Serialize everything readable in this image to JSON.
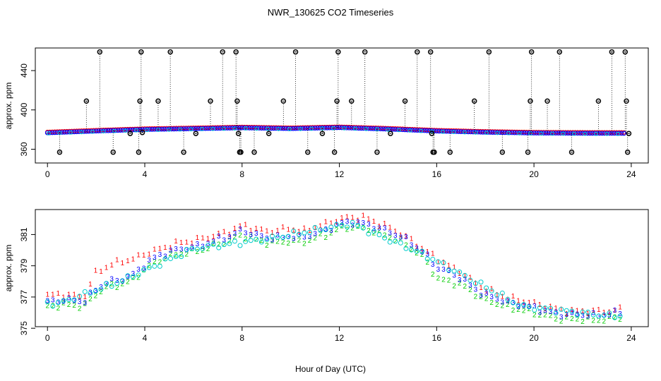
{
  "figure": {
    "title": "NWR_130625  CO2 Timeseries",
    "xlabel": "Hour of Day (UTC)"
  },
  "chart_data": [
    {
      "type": "scatter",
      "name": "all-data-panel",
      "title": "NWR_130625  CO2 Timeseries",
      "xlabel": "",
      "ylabel": "approx. ppm",
      "xlim": [
        -0.5,
        24.7
      ],
      "ylim": [
        346,
        463
      ],
      "xticks": [
        "0",
        "4",
        "8",
        "12",
        "16",
        "20",
        "24"
      ],
      "yticks": [
        "360",
        "400",
        "440"
      ],
      "grid": false,
      "legend": "none",
      "colors": {
        "main": "#0000ff",
        "secondary": "#ff0000",
        "tertiary": "#00cccc",
        "outlier": "#000000"
      },
      "baseline": {
        "x": [
          0,
          2,
          4,
          6,
          8,
          10,
          12,
          14,
          16,
          18,
          20,
          22,
          23.8
        ],
        "y": [
          376.7,
          378.5,
          380.1,
          380.9,
          381.8,
          381.0,
          382.0,
          380.5,
          378.5,
          377.3,
          376.5,
          376.3,
          376.2
        ]
      },
      "outliers": {
        "x": [
          0.5,
          1.6,
          2.15,
          2.7,
          3.4,
          3.75,
          3.8,
          3.85,
          3.9,
          4.55,
          5.05,
          5.6,
          6.1,
          6.7,
          7.2,
          7.75,
          7.8,
          7.85,
          7.9,
          7.95,
          8.5,
          9.1,
          9.7,
          10.2,
          10.7,
          11.3,
          11.8,
          11.9,
          11.95,
          12.5,
          13.05,
          13.55,
          14.1,
          14.7,
          15.2,
          15.75,
          15.8,
          15.85,
          15.9,
          16.55,
          17.55,
          18.15,
          18.7,
          19.75,
          19.85,
          19.9,
          20.55,
          21.05,
          21.55,
          22.65,
          23.2,
          23.75,
          23.8,
          23.85,
          23.9
        ],
        "y": [
          357,
          409,
          459,
          357,
          376,
          357,
          409,
          459,
          377,
          409,
          459,
          357,
          376,
          409,
          459,
          459,
          409,
          376,
          357,
          357,
          357,
          376,
          409,
          459,
          357,
          376,
          357,
          409,
          459,
          409,
          459,
          357,
          376,
          409,
          459,
          459,
          376,
          357,
          357,
          357,
          409,
          459,
          357,
          357,
          409,
          459,
          409,
          459,
          357,
          409,
          459,
          459,
          409,
          357,
          376
        ]
      }
    },
    {
      "type": "scatter",
      "name": "zoom-panel",
      "xlabel": "Hour of Day (UTC)",
      "ylabel": "approx. ppm",
      "xlim": [
        -0.5,
        24.7
      ],
      "ylim": [
        375.1,
        382.6
      ],
      "xticks": [
        "0",
        "4",
        "8",
        "12",
        "16",
        "20",
        "24"
      ],
      "yticks": [
        "375",
        "377",
        "379",
        "381"
      ],
      "grid": false,
      "legend": "none",
      "series": [
        {
          "name": "1",
          "symbol": "1",
          "color": "#ff0000",
          "offset": 0.45,
          "x": [
            0,
            0.5,
            1.0,
            1.5,
            2.0,
            2.5,
            3.0,
            3.5,
            4.0,
            4.5,
            5.0,
            5.5,
            6.0,
            6.5,
            7.0,
            7.5,
            8.0,
            8.5,
            9.0,
            9.5,
            10.0,
            10.5,
            11.0,
            11.5,
            12.0,
            12.5,
            13.0,
            13.5,
            14.0,
            14.5,
            15.0,
            15.5,
            16.0,
            16.5,
            17.0,
            17.5,
            18.0,
            18.5,
            19.0,
            19.5,
            20.0,
            20.5,
            21.0,
            21.5,
            22.0,
            22.5,
            23.0,
            23.5
          ],
          "y": [
            377.1,
            377.2,
            377.1,
            377.0,
            378.6,
            379.0,
            379.3,
            379.4,
            379.8,
            380.0,
            380.3,
            380.5,
            380.6,
            380.8,
            381.0,
            381.2,
            381.6,
            381.4,
            381.2,
            381.3,
            381.4,
            381.2,
            381.5,
            381.7,
            382.0,
            382.1,
            382.1,
            381.8,
            381.5,
            381.1,
            380.6,
            380.0,
            379.5,
            379.0,
            378.6,
            378.0,
            377.5,
            377.2,
            376.9,
            376.8,
            376.6,
            376.4,
            376.2,
            376.1,
            376.1,
            376.1,
            376.1,
            376.2
          ]
        },
        {
          "name": "3",
          "symbol": "3",
          "color": "#0000ff",
          "offset": 0.0,
          "x": [
            0,
            0.5,
            1.0,
            1.5,
            2.0,
            2.5,
            3.0,
            3.5,
            4.0,
            4.5,
            5.0,
            5.5,
            6.0,
            6.5,
            7.0,
            7.5,
            8.0,
            8.5,
            9.0,
            9.5,
            10.0,
            10.5,
            11.0,
            11.5,
            12.0,
            12.5,
            13.0,
            13.5,
            14.0,
            14.5,
            15.0,
            15.5,
            16.0,
            16.5,
            17.0,
            17.5,
            18.0,
            18.5,
            19.0,
            19.5,
            20.0,
            20.5,
            21.0,
            21.5,
            22.0,
            22.5,
            23.0,
            23.5
          ],
          "y": [
            376.7,
            376.8,
            376.8,
            376.7,
            377.5,
            378.0,
            378.1,
            378.4,
            379.1,
            379.6,
            379.9,
            380.1,
            380.2,
            380.4,
            380.7,
            380.9,
            381.3,
            381.0,
            380.8,
            380.8,
            380.9,
            380.8,
            381.1,
            381.3,
            381.7,
            381.8,
            381.7,
            381.5,
            381.2,
            380.9,
            380.4,
            379.8,
            378.9,
            378.6,
            378.2,
            377.6,
            377.1,
            376.9,
            376.6,
            376.5,
            376.3,
            376.1,
            375.9,
            375.9,
            375.9,
            375.8,
            375.9,
            376.0
          ]
        },
        {
          "name": "2",
          "symbol": "2",
          "color": "#00cc00",
          "offset": -0.3,
          "x": [
            0,
            0.5,
            1.0,
            1.5,
            2.0,
            2.5,
            3.0,
            3.5,
            4.0,
            4.5,
            5.0,
            5.5,
            6.0,
            6.5,
            7.0,
            7.5,
            8.0,
            8.5,
            9.0,
            9.5,
            10.0,
            10.5,
            11.0,
            11.5,
            12.0,
            12.5,
            13.0,
            13.5,
            14.0,
            14.5,
            15.0,
            15.5,
            16.0,
            16.5,
            17.0,
            17.5,
            18.0,
            18.5,
            19.0,
            19.5,
            20.0,
            20.5,
            21.0,
            21.5,
            22.0,
            22.5,
            23.0,
            23.5
          ],
          "y": [
            376.4,
            376.5,
            376.5,
            376.4,
            377.2,
            377.7,
            377.8,
            378.1,
            378.8,
            379.3,
            379.6,
            379.8,
            379.9,
            380.1,
            380.4,
            380.6,
            381.0,
            380.7,
            380.5,
            380.5,
            380.6,
            380.5,
            380.8,
            381.0,
            381.4,
            381.5,
            381.4,
            381.2,
            380.9,
            380.6,
            380.1,
            379.5,
            378.2,
            378.0,
            377.8,
            377.3,
            376.8,
            376.6,
            376.3,
            376.2,
            376.0,
            375.8,
            375.6,
            375.6,
            375.6,
            375.5,
            375.6,
            375.7
          ]
        },
        {
          "name": "cyan",
          "symbol": "o",
          "color": "#00cccc",
          "offset": -0.1,
          "x": [
            0.5,
            3.0,
            6.0,
            9.0,
            12.5,
            15.5,
            19.5,
            23.0
          ],
          "y": [
            376.6,
            378.0,
            380.1,
            380.7,
            381.7,
            379.7,
            376.4,
            375.8
          ]
        }
      ]
    }
  ]
}
